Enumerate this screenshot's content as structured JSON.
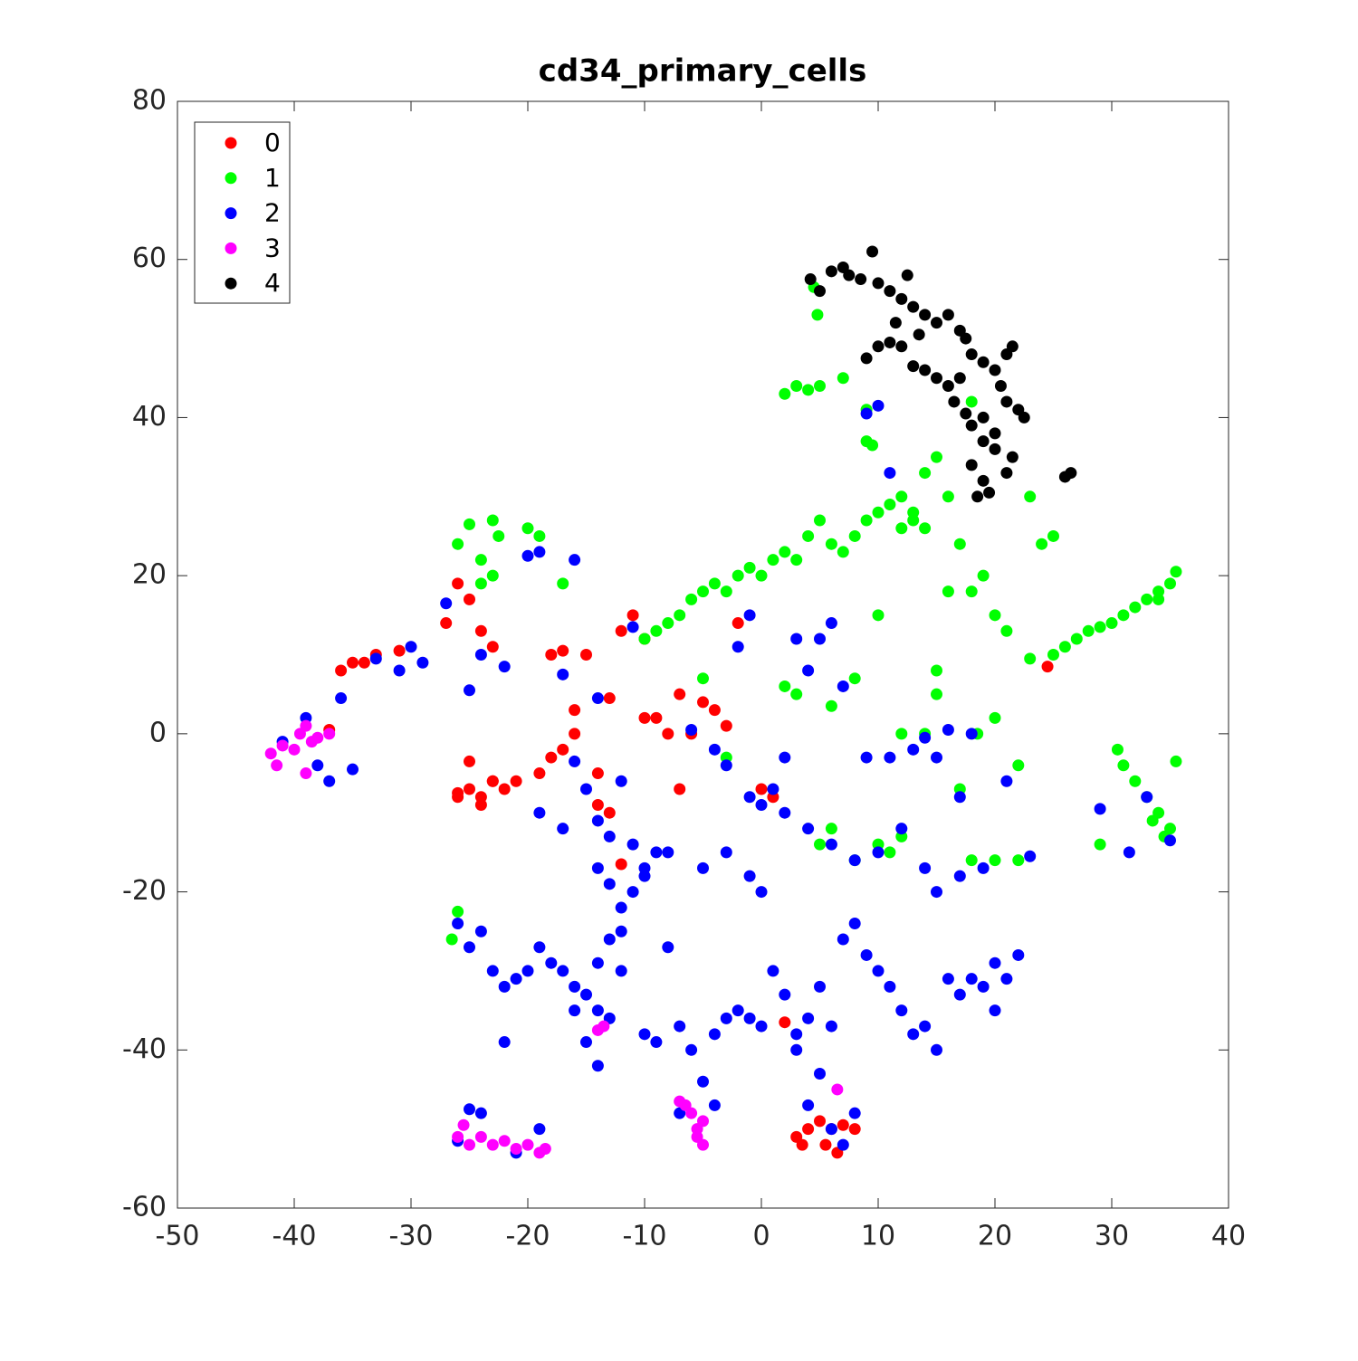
{
  "chart_data": {
    "type": "scatter",
    "title": "cd34_primary_cells",
    "xlim": [
      -50,
      40
    ],
    "xticks": [
      -50,
      -40,
      -30,
      -20,
      -10,
      0,
      10,
      20,
      30,
      40
    ],
    "ylim": [
      -60,
      80
    ],
    "yticks": [
      -60,
      -40,
      -20,
      0,
      20,
      40,
      60,
      80
    ],
    "legend": "upper-left",
    "series": [
      {
        "name": "0",
        "color": "#ff0000",
        "x": [
          -36,
          -35,
          -34,
          -33,
          -31,
          -27,
          -26,
          -25,
          -24,
          -23,
          -26,
          -25,
          -24,
          -23,
          -22,
          -26,
          -25,
          -24,
          -23,
          -21,
          -19,
          -18,
          -17,
          -16,
          -18,
          -17,
          -15,
          -14,
          -13,
          -12,
          -12,
          -11,
          -10,
          -9,
          -5,
          -4,
          -3,
          -6,
          -2,
          -7,
          3,
          4,
          5,
          6,
          7,
          8,
          5.5,
          3.5,
          6.5,
          2,
          -37,
          -16,
          -13,
          -14,
          0,
          1,
          24.5,
          -8,
          -10,
          -7
        ],
        "values": [
          8,
          9,
          9,
          10,
          10.5,
          14,
          19,
          17,
          13,
          11,
          -8,
          -7,
          -9,
          -6,
          -7,
          -7.5,
          -3.5,
          -8,
          -6,
          -6,
          -5,
          -3,
          -2,
          0,
          10,
          10.5,
          10,
          -9,
          -10,
          -16.5,
          13,
          15,
          12,
          2,
          4,
          3,
          1,
          0,
          14,
          5,
          -51,
          -50,
          -49,
          -50,
          -49.5,
          -50,
          -52,
          -52,
          -53,
          -36.5,
          0.5,
          3,
          4.5,
          -5,
          -7,
          -8,
          8.5,
          0,
          2,
          -7
        ]
      },
      {
        "name": "1",
        "color": "#00ff00",
        "x": [
          -26,
          -25,
          -24,
          -23,
          -22.5,
          -24,
          -23,
          -20,
          -19,
          -17,
          -10,
          -9,
          -8,
          -7,
          -6,
          -5,
          -4,
          -3,
          -2,
          -1,
          0,
          1,
          2,
          3,
          4,
          5,
          6,
          7,
          8,
          9,
          10,
          11,
          12,
          13,
          14,
          15,
          16,
          14,
          13,
          12,
          25,
          26,
          27,
          28,
          29,
          30,
          31,
          32,
          33,
          34,
          35,
          35.5,
          34,
          23,
          24,
          25,
          18,
          19,
          20,
          21,
          30.5,
          31,
          32,
          33,
          34,
          35,
          34.5,
          33.5,
          35.5,
          29,
          2,
          3,
          4,
          5,
          7,
          9,
          11,
          18,
          20,
          22,
          9,
          9.5,
          4.8,
          4.5,
          -26.5,
          -26,
          12,
          14,
          15,
          17,
          5,
          6,
          8,
          10,
          12,
          18.5,
          20,
          22,
          -5,
          -3,
          2,
          3,
          6,
          8,
          10,
          16,
          17,
          15,
          23,
          18
        ],
        "values": [
          24,
          26.5,
          22,
          27,
          25,
          19,
          20,
          26,
          25,
          19,
          12,
          13,
          14,
          15,
          17,
          18,
          19,
          18,
          20,
          21,
          20,
          22,
          23,
          22,
          25,
          27,
          24,
          23,
          25,
          27,
          28,
          29,
          30,
          28,
          33,
          35,
          30,
          26,
          27,
          26,
          10,
          11,
          12,
          13,
          13.5,
          14,
          15,
          16,
          17,
          18,
          19,
          20.5,
          17,
          9.5,
          24,
          25,
          18,
          20,
          15,
          13,
          -2,
          -4,
          -6,
          -8,
          -10,
          -12,
          -13,
          -11,
          -3.5,
          -14,
          43,
          44,
          43.5,
          44,
          45,
          41,
          -15,
          -16,
          -16,
          -16,
          37,
          36.5,
          53,
          56.5,
          -26,
          -22.5,
          0,
          0,
          5,
          -7,
          -14,
          -12,
          -16,
          -14,
          -13,
          0,
          2,
          -4,
          7,
          -3,
          6,
          5,
          3.5,
          7,
          15,
          18,
          24,
          8,
          30,
          42
        ]
      },
      {
        "name": "2",
        "color": "#0000ff",
        "x": [
          -41,
          -39,
          -38,
          -37,
          -35,
          -36,
          -33,
          -31,
          -30,
          -29,
          -27,
          -25,
          -24,
          -22,
          -20,
          -19,
          -17,
          -16,
          -14,
          -11,
          -19,
          -17,
          -16,
          -15,
          -14,
          -13,
          -12,
          -11,
          -10,
          -9,
          -14,
          -13,
          -12,
          -11,
          -10,
          -8,
          -5,
          -3,
          -1,
          0,
          -26,
          -25,
          -24,
          -23,
          -22,
          -21,
          -20,
          -19,
          -18,
          -17,
          -16,
          -15,
          -14,
          -13,
          -12,
          -15,
          -16,
          -14,
          -22,
          -25,
          -10,
          -9,
          -7,
          -6,
          -5,
          -4,
          -3,
          -2,
          -1,
          0,
          1,
          2,
          3,
          4,
          5,
          6,
          7,
          8,
          9,
          10,
          11,
          12,
          13,
          14,
          15,
          16,
          17,
          18,
          19,
          20,
          21,
          22,
          4,
          5,
          6,
          7,
          8,
          3,
          4,
          2,
          6,
          8,
          10,
          12,
          14,
          15,
          17,
          19,
          21,
          23,
          3,
          4,
          5,
          6,
          7,
          9,
          11,
          13,
          15,
          17,
          -1,
          0,
          1,
          2,
          -3,
          -4,
          9,
          10,
          11,
          -6,
          29,
          31.5,
          35,
          33,
          -26,
          -24,
          -21,
          -19,
          -7,
          -4,
          -12,
          -13,
          -14,
          -8,
          -1,
          -2,
          14,
          16,
          18,
          20
        ],
        "values": [
          -1,
          2,
          -4,
          -6,
          -4.5,
          4.5,
          9.5,
          8,
          11,
          9,
          16.5,
          5.5,
          10,
          8.5,
          22.5,
          23,
          7.5,
          22,
          4.5,
          13.5,
          -10,
          -12,
          -3.5,
          -7,
          -11,
          -13,
          -6,
          -14,
          -17,
          -15,
          -17,
          -19,
          -22,
          -20,
          -18,
          -15,
          -17,
          -15,
          -18,
          -20,
          -24,
          -27,
          -25,
          -30,
          -32,
          -31,
          -30,
          -27,
          -29,
          -30,
          -32,
          -33,
          -35,
          -36,
          -30,
          -39,
          -35,
          -42,
          -39,
          -47.5,
          -38,
          -39,
          -37,
          -40,
          -44,
          -38,
          -36,
          -35,
          -36,
          -37,
          -30,
          -33,
          -38,
          -36,
          -32,
          -37,
          -26,
          -24,
          -28,
          -30,
          -32,
          -35,
          -38,
          -37,
          -40,
          -31,
          -33,
          -31,
          -32,
          -29,
          -31,
          -28,
          -47,
          -43,
          -50,
          -52,
          -48,
          -40,
          -12,
          -10,
          -14,
          -16,
          -15,
          -12,
          -17,
          -20,
          -18,
          -17,
          -6,
          -15.5,
          12,
          8,
          12,
          14,
          6,
          -3,
          -3,
          -2,
          -3,
          -8,
          -8,
          -9,
          -7,
          -3,
          -4,
          -2,
          40.5,
          41.5,
          33,
          0.5,
          -9.5,
          -15,
          -13.5,
          -8,
          -51.5,
          -48,
          -53,
          -50,
          -48,
          -47,
          -25,
          -26,
          -29,
          -27,
          15,
          11,
          -0.5,
          0.5,
          0,
          -35
        ]
      },
      {
        "name": "3",
        "color": "#ff00ff",
        "x": [
          -42,
          -41,
          -40,
          -39.5,
          -39,
          -38.5,
          -38,
          -37,
          -41.5,
          -39,
          -26,
          -25,
          -24,
          -23,
          -22,
          -21,
          -20,
          -19,
          -18.5,
          -25.5,
          -6,
          -5.5,
          -5,
          -6.5,
          -5.5,
          -5,
          -14,
          -13.5,
          6.5,
          -7
        ],
        "values": [
          -2.5,
          -1.5,
          -2,
          0,
          1,
          -1,
          -0.5,
          0,
          -4,
          -5,
          -51,
          -52,
          -51,
          -52,
          -51.5,
          -52.5,
          -52,
          -53,
          -52.5,
          -49.5,
          -48,
          -50,
          -52,
          -47,
          -51,
          -49,
          -37.5,
          -37,
          -45,
          -46.5
        ]
      },
      {
        "name": "4",
        "color": "#000000",
        "x": [
          4.2,
          5,
          6,
          7,
          7.5,
          8.5,
          9.5,
          10,
          11,
          12,
          12.5,
          13,
          14,
          15,
          16,
          17,
          17.5,
          18,
          19,
          20,
          21,
          21.5,
          20.5,
          21,
          22,
          22.5,
          19,
          18,
          19,
          20,
          18,
          19,
          18.5,
          19.5,
          21,
          21.5,
          16,
          15,
          14,
          13,
          12,
          11,
          10,
          9,
          17,
          26,
          26.5,
          11.5,
          13.5,
          16.5,
          17.5,
          20
        ],
        "values": [
          57.5,
          56,
          58.5,
          59,
          58,
          57.5,
          61,
          57,
          56,
          55,
          58,
          54,
          53,
          52,
          53,
          51,
          50,
          48,
          47,
          46,
          48,
          49,
          44,
          42,
          41,
          40,
          40,
          39,
          37,
          36,
          34,
          32,
          30,
          30.5,
          33,
          35,
          44,
          45,
          46,
          46.5,
          49,
          49.5,
          49,
          47.5,
          45,
          32.5,
          33,
          52,
          50.5,
          42,
          40.5,
          38
        ]
      }
    ]
  }
}
